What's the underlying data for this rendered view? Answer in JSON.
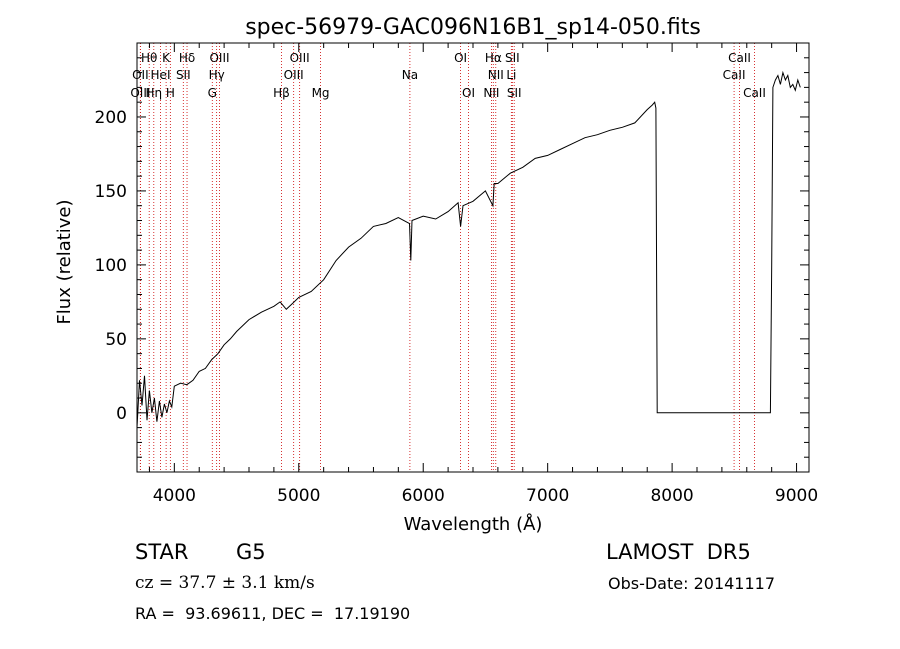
{
  "chart_data": {
    "type": "line",
    "title": "spec-56979-GAC096N16B1_sp14-050.fits",
    "xlabel": "Wavelength (Å)",
    "ylabel": "Flux (relative)",
    "xlim": [
      3700,
      9100
    ],
    "ylim": [
      -40,
      250
    ],
    "x_ticks": [
      4000,
      5000,
      6000,
      7000,
      8000,
      9000
    ],
    "y_ticks": [
      0,
      50,
      100,
      150,
      200
    ],
    "grid": false,
    "series": [
      {
        "x": [
          3700,
          3720,
          3740,
          3760,
          3780,
          3800,
          3820,
          3840,
          3860,
          3880,
          3900,
          3920,
          3940,
          3960,
          3980,
          4000,
          4050,
          4100,
          4150,
          4200,
          4250,
          4300,
          4350,
          4400,
          4450,
          4500,
          4600,
          4700,
          4800,
          4850,
          4900,
          4950,
          5000,
          5100,
          5200,
          5300,
          5400,
          5500,
          5600,
          5700,
          5800,
          5890,
          5900,
          5910,
          6000,
          6100,
          6200,
          6280,
          6300,
          6320,
          6400,
          6500,
          6560,
          6570,
          6600,
          6700,
          6800,
          6900,
          7000,
          7100,
          7200,
          7300,
          7400,
          7500,
          7600,
          7700,
          7800,
          7840,
          7860,
          7870,
          7880,
          7900,
          8000,
          8100,
          8200,
          8300,
          8400,
          8500,
          8600,
          8700,
          8780,
          8790,
          8800,
          8810,
          8830,
          8850,
          8870,
          8890,
          8910,
          8930,
          8950,
          8970,
          8990,
          9010,
          9030
        ],
        "y": [
          -10,
          22,
          5,
          25,
          -5,
          15,
          0,
          10,
          -6,
          8,
          -3,
          6,
          0,
          8,
          4,
          18,
          20,
          19,
          22,
          28,
          30,
          36,
          40,
          46,
          50,
          55,
          63,
          68,
          72,
          75,
          70,
          74,
          78,
          82,
          90,
          103,
          112,
          118,
          126,
          128,
          132,
          128,
          103,
          130,
          133,
          131,
          136,
          142,
          126,
          140,
          143,
          150,
          140,
          155,
          155,
          162,
          166,
          172,
          174,
          178,
          182,
          186,
          188,
          191,
          193,
          196,
          205,
          208,
          210,
          206,
          0,
          0,
          0,
          0,
          0,
          0,
          0,
          0,
          0,
          0,
          0,
          0,
          100,
          220,
          225,
          228,
          222,
          230,
          225,
          228,
          220,
          222,
          218,
          225,
          220
        ]
      }
    ],
    "lines": [
      {
        "name": "Hθ",
        "wave": 3798,
        "row": 1
      },
      {
        "name": "K",
        "wave": 3934,
        "row": 1
      },
      {
        "name": "Hδ",
        "wave": 4102,
        "row": 1
      },
      {
        "name": "OIII",
        "wave": 4363,
        "row": 1
      },
      {
        "name": "OIII",
        "wave": 5007,
        "row": 1
      },
      {
        "name": "OI",
        "wave": 6300,
        "row": 1
      },
      {
        "name": "Hα",
        "wave": 6563,
        "row": 1
      },
      {
        "name": "SII",
        "wave": 6716,
        "row": 1
      },
      {
        "name": "CaII",
        "wave": 8542,
        "row": 1
      },
      {
        "name": "OII",
        "wave": 3727,
        "row": 2
      },
      {
        "name": "HeI",
        "wave": 3889,
        "row": 2
      },
      {
        "name": "SII",
        "wave": 4072,
        "row": 2
      },
      {
        "name": "Hγ",
        "wave": 4340,
        "row": 2
      },
      {
        "name": "OIII",
        "wave": 4959,
        "row": 2
      },
      {
        "name": "Na",
        "wave": 5893,
        "row": 2
      },
      {
        "name": "NII",
        "wave": 6583,
        "row": 2
      },
      {
        "name": "Li",
        "wave": 6708,
        "row": 2
      },
      {
        "name": "CaII",
        "wave": 8498,
        "row": 2
      },
      {
        "name": "OIII",
        "wave": 3727,
        "row": 3
      },
      {
        "name": "Hη",
        "wave": 3835,
        "row": 3
      },
      {
        "name": "H",
        "wave": 3968,
        "row": 3
      },
      {
        "name": "G",
        "wave": 4305,
        "row": 3
      },
      {
        "name": "Hβ",
        "wave": 4861,
        "row": 3
      },
      {
        "name": "Mg",
        "wave": 5175,
        "row": 3
      },
      {
        "name": "OI",
        "wave": 6364,
        "row": 3
      },
      {
        "name": "NII",
        "wave": 6548,
        "row": 3
      },
      {
        "name": "SII",
        "wave": 6731,
        "row": 3
      },
      {
        "name": "CaII",
        "wave": 8662,
        "row": 3
      }
    ]
  },
  "info": {
    "object_class": "STAR",
    "subclass": "G5",
    "survey": "LAMOST  DR5",
    "cz": "cz = 37.7 ± 3.1 km/s",
    "obs_date": "Obs-Date: 20141117",
    "coords": "RA =  93.69611, DEC =  17.19190"
  },
  "colors": {
    "spectrum": "#000000",
    "line_marker": "#cc0000",
    "axes": "#000000"
  }
}
